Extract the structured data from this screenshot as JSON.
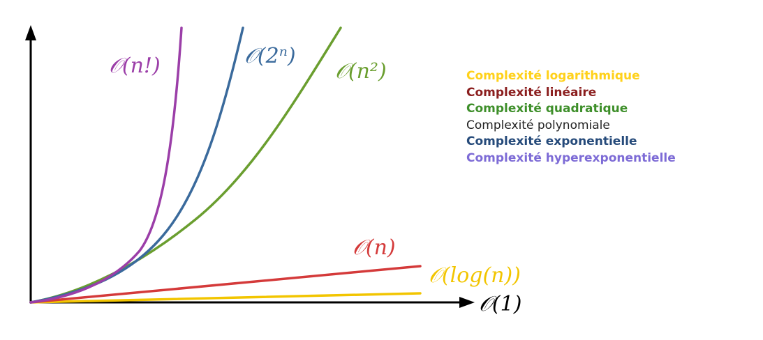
{
  "colors": {
    "axis": "#000000",
    "logarithmic": "#f2c500",
    "linear": "#d43a3a",
    "quadratic": "#6a9e2f",
    "polynomial": "#222222",
    "exponential": "#3a6a9c",
    "hyperexponential": "#9b3ea8",
    "legend_linear": "#8b1e1e",
    "legend_quadratic": "#3e8f2a",
    "legend_exponential": "#254a7a",
    "legend_hyperexponential": "#7d6bd6",
    "legend_logarithmic": "#ffd11a"
  },
  "axis_labels": {
    "x_end": "𝒪(1)"
  },
  "curves": [
    {
      "id": "factorial",
      "label": "𝒪(n!)",
      "color_key": "hyperexponential"
    },
    {
      "id": "exponential",
      "label": "𝒪(2ⁿ)",
      "color_key": "exponential"
    },
    {
      "id": "quadratic",
      "label": "𝒪(n²)",
      "color_key": "quadratic"
    },
    {
      "id": "linear",
      "label": "𝒪(n)",
      "color_key": "linear"
    },
    {
      "id": "logarithmic",
      "label": "𝒪(log(n))",
      "color_key": "logarithmic"
    }
  ],
  "legend": [
    {
      "text": "Complexité logarithmique",
      "color_key": "legend_logarithmic",
      "bold": true
    },
    {
      "text": "Complexité linéaire",
      "color_key": "legend_linear",
      "bold": true
    },
    {
      "text": "Complexité quadratique",
      "color_key": "legend_quadratic",
      "bold": true
    },
    {
      "text": "Complexité polynomiale",
      "color_key": "polynomial",
      "bold": false
    },
    {
      "text": "Complexité exponentielle",
      "color_key": "legend_exponential",
      "bold": true
    },
    {
      "text": "Complexité hyperexponentielle",
      "color_key": "legend_hyperexponential",
      "bold": true
    }
  ]
}
